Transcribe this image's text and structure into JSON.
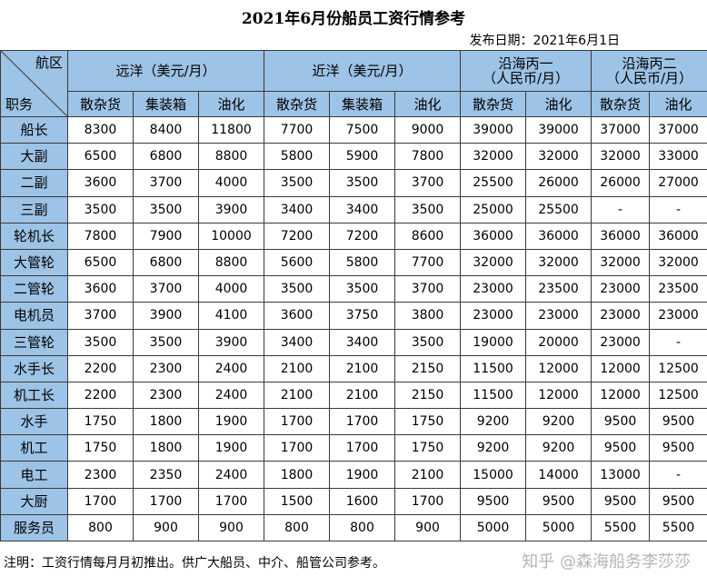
{
  "title": "2021年6月份船员工资行情参考",
  "publish_date": "发布日期：2021年6月1日",
  "header": {
    "corner_top": "航区",
    "corner_bottom": "职务",
    "regions": [
      {
        "label": "远洋（美元/月）"
      },
      {
        "label": "近洋（美元/月）"
      },
      {
        "label": "沿海丙一",
        "sub": "（人民币/月）"
      },
      {
        "label": "沿海丙二",
        "sub": "（人民币/月）"
      }
    ],
    "cargo_types": [
      "散杂货",
      "集装箱",
      "油化",
      "散杂货",
      "集装箱",
      "油化",
      "散杂货",
      "油化",
      "散杂货",
      "油化"
    ]
  },
  "rows": [
    {
      "position": "船长",
      "values": [
        "8300",
        "8400",
        "11800",
        "7700",
        "7500",
        "9000",
        "39000",
        "39000",
        "37000",
        "37000"
      ]
    },
    {
      "position": "大副",
      "values": [
        "6500",
        "6800",
        "8800",
        "5800",
        "5900",
        "7800",
        "32000",
        "32000",
        "32000",
        "33000"
      ]
    },
    {
      "position": "二副",
      "values": [
        "3600",
        "3700",
        "4000",
        "3500",
        "3500",
        "3700",
        "25500",
        "26000",
        "26000",
        "27000"
      ]
    },
    {
      "position": "三副",
      "values": [
        "3500",
        "3500",
        "3900",
        "3400",
        "3400",
        "3500",
        "25000",
        "25500",
        "-",
        "-"
      ]
    },
    {
      "position": "轮机长",
      "values": [
        "7800",
        "7900",
        "10000",
        "7200",
        "7200",
        "8600",
        "36000",
        "36000",
        "36000",
        "36000"
      ]
    },
    {
      "position": "大管轮",
      "values": [
        "6500",
        "6800",
        "8800",
        "5600",
        "5800",
        "7700",
        "32000",
        "32000",
        "32000",
        "32000"
      ]
    },
    {
      "position": "二管轮",
      "values": [
        "3600",
        "3700",
        "4000",
        "3500",
        "3500",
        "3700",
        "23000",
        "23500",
        "23000",
        "23500"
      ]
    },
    {
      "position": "电机员",
      "values": [
        "3700",
        "3900",
        "4100",
        "3600",
        "3750",
        "3800",
        "23000",
        "23000",
        "23000",
        "23000"
      ]
    },
    {
      "position": "三管轮",
      "values": [
        "3500",
        "3500",
        "3900",
        "3400",
        "3400",
        "3500",
        "19000",
        "20000",
        "23000",
        "-"
      ]
    },
    {
      "position": "水手长",
      "values": [
        "2200",
        "2300",
        "2400",
        "2100",
        "2100",
        "2150",
        "11500",
        "12000",
        "12000",
        "12500"
      ]
    },
    {
      "position": "机工长",
      "values": [
        "2200",
        "2300",
        "2400",
        "2100",
        "2100",
        "2150",
        "11500",
        "12000",
        "12000",
        "12500"
      ]
    },
    {
      "position": "水手",
      "values": [
        "1750",
        "1800",
        "1900",
        "1700",
        "1700",
        "1750",
        "9200",
        "9200",
        "9500",
        "9500"
      ]
    },
    {
      "position": "机工",
      "values": [
        "1750",
        "1800",
        "1900",
        "1700",
        "1700",
        "1750",
        "9200",
        "9200",
        "9500",
        "9500"
      ]
    },
    {
      "position": "电工",
      "values": [
        "2300",
        "2350",
        "2400",
        "1800",
        "1900",
        "2100",
        "15000",
        "14000",
        "13000",
        "-"
      ]
    },
    {
      "position": "大厨",
      "values": [
        "1700",
        "1700",
        "1700",
        "1500",
        "1600",
        "1700",
        "9500",
        "9500",
        "9500",
        "9500"
      ]
    },
    {
      "position": "服务员",
      "values": [
        "800",
        "900",
        "900",
        "800",
        "800",
        "900",
        "5000",
        "5000",
        "5500",
        "5500"
      ]
    }
  ],
  "footnote": "注明：工资行情每月月初推出。供广大船员、中介、船管公司参考。",
  "watermark": "知乎 @森海船务李莎莎",
  "colors": {
    "header_fill": "#9dc3e6",
    "grid": "#3a3a3a",
    "watermark": "#b5b5b5"
  }
}
